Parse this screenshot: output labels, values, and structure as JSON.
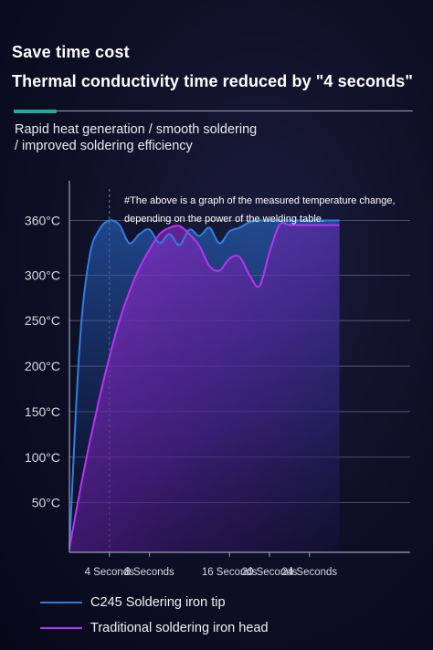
{
  "header": {
    "title": "Save time cost",
    "subtitle": "Thermal conductivity time reduced by \"4 seconds\"",
    "description": "Rapid heat generation / smooth soldering\n/ improved soldering efficiency"
  },
  "chart_data": {
    "type": "line",
    "title": "",
    "xlabel": "",
    "ylabel": "",
    "note_lines": [
      "#The above is a graph of the measured temperature change,",
      "depending on the power of the welding table."
    ],
    "y_ticks": [
      {
        "value": 50,
        "label": "50°C"
      },
      {
        "value": 100,
        "label": "100°C"
      },
      {
        "value": 150,
        "label": "150°C"
      },
      {
        "value": 200,
        "label": "200°C"
      },
      {
        "value": 250,
        "label": "250°C"
      },
      {
        "value": 300,
        "label": "300°C"
      },
      {
        "value": 360,
        "label": "360°C"
      }
    ],
    "x_ticks": [
      {
        "value": 4,
        "label": "4 Seconds"
      },
      {
        "value": 8,
        "label": "8 Seconds"
      },
      {
        "value": 16,
        "label": "16 Seconds"
      },
      {
        "value": 20,
        "label": "20 Seconds"
      },
      {
        "value": 24,
        "label": "24 Seconds"
      }
    ],
    "reference_line_x": 4,
    "grid": true,
    "series": [
      {
        "name": "C245 Soldering iron tip",
        "color": "#2f7fe0",
        "x": [
          0,
          1,
          2,
          3,
          4,
          5,
          6,
          7,
          8,
          9,
          10,
          11,
          12,
          13,
          14,
          15,
          16,
          17,
          18,
          19,
          20,
          21,
          22,
          23,
          24,
          25,
          26,
          27
        ],
        "y": [
          0,
          220,
          320,
          350,
          360,
          355,
          335,
          345,
          350,
          335,
          345,
          333,
          350,
          343,
          352,
          335,
          348,
          352,
          358,
          360,
          360,
          360,
          360,
          360,
          360,
          360,
          360,
          360
        ]
      },
      {
        "name": "Traditional soldering iron head",
        "color": "#b635f0",
        "x": [
          0,
          1,
          2,
          3,
          4,
          5,
          6,
          7,
          8,
          9,
          10,
          11,
          12,
          13,
          14,
          15,
          16,
          17,
          18,
          19,
          20,
          21,
          22,
          23,
          24,
          25,
          26,
          27
        ],
        "y": [
          0,
          60,
          115,
          165,
          210,
          250,
          282,
          308,
          328,
          345,
          352,
          354,
          345,
          332,
          310,
          305,
          318,
          320,
          300,
          288,
          325,
          355,
          355,
          355,
          355,
          355,
          355,
          355
        ]
      }
    ]
  }
}
